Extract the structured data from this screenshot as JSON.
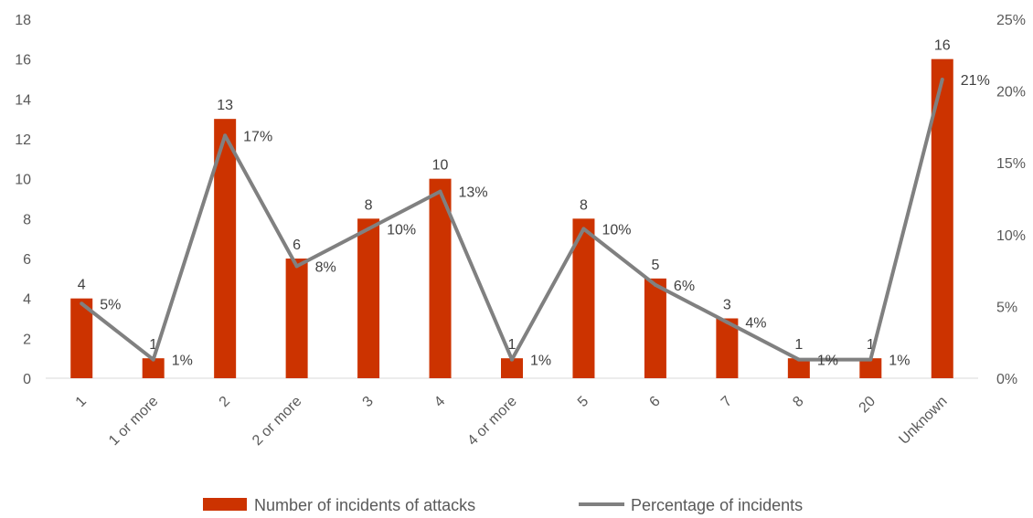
{
  "chart_data": {
    "type": "bar",
    "categories": [
      "1",
      "1 or more",
      "2",
      "2 or more",
      "3",
      "4",
      "4 or more",
      "5",
      "6",
      "7",
      "8",
      "20",
      "Unknown"
    ],
    "series": [
      {
        "name": "Number of incidents of attacks",
        "type": "bar",
        "axis": "left",
        "color": "#CC3300",
        "values": [
          4,
          1,
          13,
          6,
          8,
          10,
          1,
          8,
          5,
          3,
          1,
          1,
          16
        ],
        "labels": [
          "4",
          "1",
          "13",
          "6",
          "8",
          "10",
          "1",
          "8",
          "5",
          "3",
          "1",
          "1",
          "16"
        ]
      },
      {
        "name": "Percentage of incidents",
        "type": "line",
        "axis": "right",
        "color": "#808080",
        "values": [
          5.2,
          1.3,
          16.9,
          7.8,
          10.4,
          13.0,
          1.3,
          10.4,
          6.5,
          3.9,
          1.3,
          1.3,
          20.8
        ],
        "labels": [
          "5%",
          "1%",
          "17%",
          "8%",
          "10%",
          "13%",
          "1%",
          "10%",
          "6%",
          "4%",
          "1%",
          "1%",
          "21%"
        ]
      }
    ],
    "y_left": {
      "min": 0,
      "max": 18,
      "ticks": [
        "0",
        "2",
        "4",
        "6",
        "8",
        "10",
        "12",
        "14",
        "16",
        "18"
      ]
    },
    "y_right": {
      "min": 0,
      "max": 25,
      "ticks": [
        "0%",
        "5%",
        "10%",
        "15%",
        "20%",
        "25%"
      ]
    },
    "grid": false,
    "legend": "bottom-center",
    "title": "",
    "xlabel": "",
    "ylabel": ""
  }
}
